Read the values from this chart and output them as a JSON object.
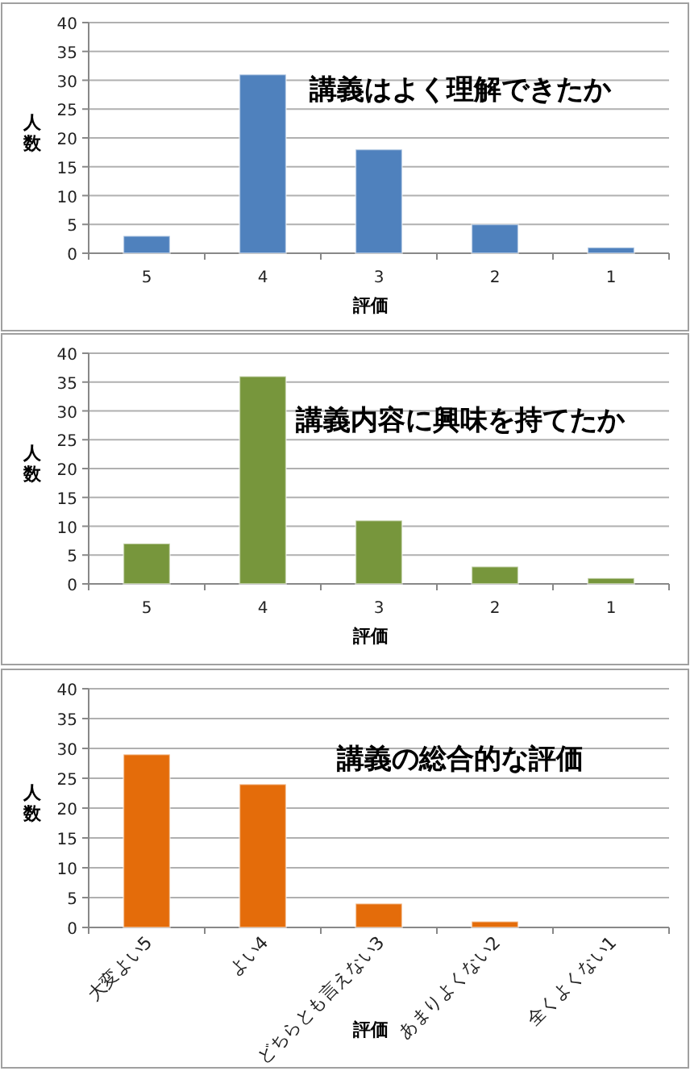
{
  "chart_data": [
    {
      "type": "bar",
      "title": "講義はよく理解できたか",
      "xlabel": "評価",
      "ylabel": "人数",
      "categories": [
        "5",
        "4",
        "3",
        "2",
        "1"
      ],
      "values": [
        3,
        31,
        18,
        5,
        1
      ],
      "color": "#4f81bd",
      "ylim": [
        0,
        40
      ],
      "yticks": [
        0,
        5,
        10,
        15,
        20,
        25,
        30,
        35,
        40
      ],
      "grid": "y"
    },
    {
      "type": "bar",
      "title": "講義内容に興味を持てたか",
      "xlabel": "評価",
      "ylabel": "人数",
      "categories": [
        "5",
        "4",
        "3",
        "2",
        "1"
      ],
      "values": [
        7,
        36,
        11,
        3,
        1
      ],
      "color": "#77963c",
      "ylim": [
        0,
        40
      ],
      "yticks": [
        0,
        5,
        10,
        15,
        20,
        25,
        30,
        35,
        40
      ],
      "grid": "y"
    },
    {
      "type": "bar",
      "title": "講義の総合的な評価",
      "xlabel": "評価",
      "ylabel": "人数",
      "categories": [
        "大変よい5",
        "よい4",
        "どちらとも言えない3",
        "あまりよくない2",
        "全くよくない1"
      ],
      "values": [
        29,
        24,
        4,
        1,
        0
      ],
      "color": "#e46c0a",
      "ylim": [
        0,
        40
      ],
      "yticks": [
        0,
        5,
        10,
        15,
        20,
        25,
        30,
        35,
        40
      ],
      "grid": "y"
    }
  ]
}
